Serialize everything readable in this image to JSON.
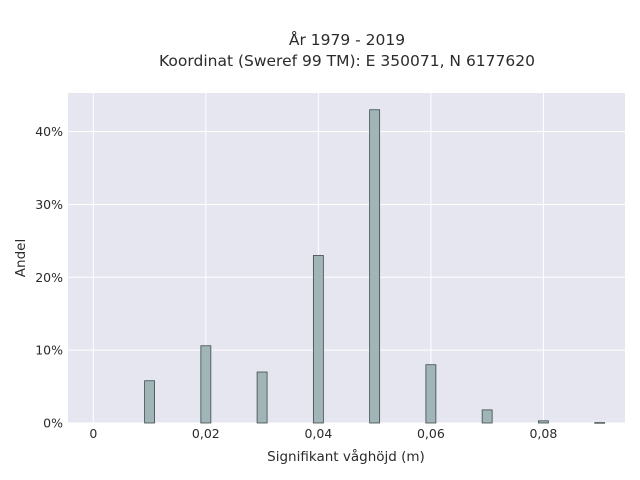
{
  "chart_data": {
    "type": "bar",
    "title_lines": [
      "År 1979 - 2019",
      "Koordinat (Sweref 99 TM): E 350071, N 6177620"
    ],
    "xlabel": "Signifikant våghöjd (m)",
    "ylabel": "Andel",
    "x": [
      0.01,
      0.02,
      0.03,
      0.04,
      0.05,
      0.06,
      0.07,
      0.08,
      0.09
    ],
    "values": [
      5.8,
      10.6,
      7.0,
      23.0,
      43.0,
      8.0,
      1.8,
      0.3,
      0.05
    ],
    "xlim": [
      -0.0045,
      0.0945
    ],
    "ylim": [
      0,
      45.3
    ],
    "xticks": [
      0,
      0.02,
      0.04,
      0.06,
      0.08
    ],
    "xtick_labels": [
      "0",
      "0,02",
      "0,04",
      "0,06",
      "0,08"
    ],
    "yticks": [
      0,
      10,
      20,
      30,
      40
    ],
    "ytick_labels": [
      "0%",
      "10%",
      "20%",
      "30%",
      "40%"
    ],
    "grid": true,
    "colors": {
      "plot_bg": "#e5e6ef",
      "bar_fill": "#9fb5b6",
      "bar_edge": "#3f4a4a",
      "grid": "#ffffff"
    }
  }
}
